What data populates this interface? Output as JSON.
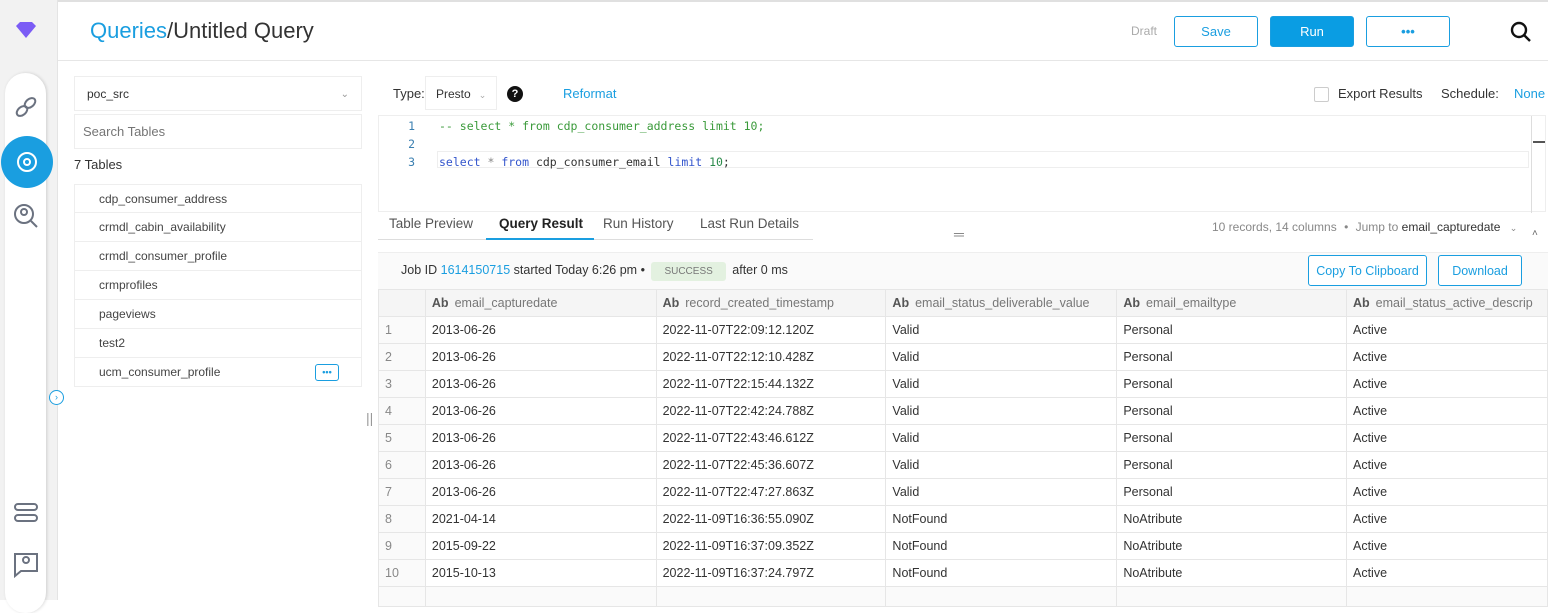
{
  "header": {
    "breadcrumb_root": "Queries",
    "separator": "/",
    "title": "Untitled Query",
    "status": "Draft",
    "save": "Save",
    "run": "Run",
    "more": "•••"
  },
  "sidebar": {
    "database": "poc_src",
    "search_placeholder": "Search Tables",
    "count": "7 Tables",
    "tables": [
      "cdp_consumer_address",
      "crmdl_cabin_availability",
      "crmdl_consumer_profile",
      "crmprofiles",
      "pageviews",
      "test2",
      "ucm_consumer_profile"
    ],
    "more": "•••"
  },
  "toolbar": {
    "type_label": "Type:",
    "type_value": "Presto",
    "reformat": "Reformat",
    "export": "Export Results",
    "schedule_label": "Schedule:",
    "schedule_value": "None"
  },
  "editor": {
    "lines": [
      {
        "n": "1",
        "parts": [
          {
            "t": "-- select * from cdp_consumer_address limit 10;",
            "c": "#3a9a3a"
          }
        ]
      },
      {
        "n": "2",
        "parts": []
      },
      {
        "n": "3",
        "parts": [
          {
            "t": "select",
            "c": "#3355cc"
          },
          {
            "t": " * ",
            "c": "#888"
          },
          {
            "t": "from",
            "c": "#3355cc"
          },
          {
            "t": " cdp_consumer_email ",
            "c": "#333"
          },
          {
            "t": "limit",
            "c": "#3355cc"
          },
          {
            "t": " 10",
            "c": "#2a8a4a"
          },
          {
            "t": ";",
            "c": "#333"
          }
        ]
      }
    ]
  },
  "tabs": [
    "Table Preview",
    "Query Result",
    "Run History",
    "Last Run Details"
  ],
  "result_meta": {
    "summary": "10 records, 14 columns",
    "bullet": "•",
    "jump_label": "Jump to",
    "jump_value": "email_capturedate"
  },
  "job": {
    "prefix": "Job ID",
    "id": "1614150715",
    "started": "started Today 6:26 pm •",
    "status": "SUCCESS",
    "after": "after 0 ms",
    "copy": "Copy To Clipboard",
    "download": "Download"
  },
  "table": {
    "type_badge": "Ab",
    "columns": [
      "email_capturedate",
      "record_created_timestamp",
      "email_status_deliverable_value",
      "email_emailtype",
      "email_status_active_descrip"
    ],
    "rows": [
      [
        "1",
        "2013-06-26",
        "2022-11-07T22:09:12.120Z",
        "Valid",
        "Personal",
        "Active"
      ],
      [
        "2",
        "2013-06-26",
        "2022-11-07T22:12:10.428Z",
        "Valid",
        "Personal",
        "Active"
      ],
      [
        "3",
        "2013-06-26",
        "2022-11-07T22:15:44.132Z",
        "Valid",
        "Personal",
        "Active"
      ],
      [
        "4",
        "2013-06-26",
        "2022-11-07T22:42:24.788Z",
        "Valid",
        "Personal",
        "Active"
      ],
      [
        "5",
        "2013-06-26",
        "2022-11-07T22:43:46.612Z",
        "Valid",
        "Personal",
        "Active"
      ],
      [
        "6",
        "2013-06-26",
        "2022-11-07T22:45:36.607Z",
        "Valid",
        "Personal",
        "Active"
      ],
      [
        "7",
        "2013-06-26",
        "2022-11-07T22:47:27.863Z",
        "Valid",
        "Personal",
        "Active"
      ],
      [
        "8",
        "2021-04-14",
        "2022-11-09T16:36:55.090Z",
        "NotFound",
        "NoAtribute",
        "Active"
      ],
      [
        "9",
        "2015-09-22",
        "2022-11-09T16:37:09.352Z",
        "NotFound",
        "NoAtribute",
        "Active"
      ],
      [
        "10",
        "2015-10-13",
        "2022-11-09T16:37:24.797Z",
        "NotFound",
        "NoAtribute",
        "Active"
      ]
    ]
  },
  "colors": {
    "accent": "#1a9ee0",
    "success_bg": "#e3f1e0",
    "logo": "#7b5cf5"
  }
}
